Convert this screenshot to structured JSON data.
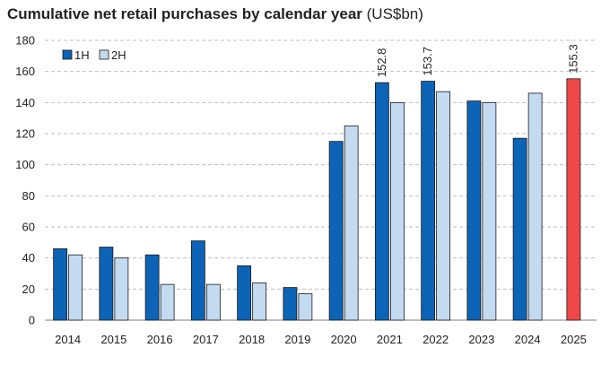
{
  "title": {
    "main": "Cumulative net retail purchases by calendar year",
    "unit": "(US$bn)"
  },
  "colors": {
    "h1": "#0d63b5",
    "h2": "#c4daf1",
    "highlight": "#f04848",
    "grid": "#bfbfbf",
    "axis": "#7f7f7f"
  },
  "chart_data": {
    "type": "bar",
    "title": "Cumulative net retail purchases by calendar year (US$bn)",
    "categories": [
      "2014",
      "2015",
      "2016",
      "2017",
      "2018",
      "2019",
      "2020",
      "2021",
      "2022",
      "2023",
      "2024",
      "2025"
    ],
    "series": [
      {
        "name": "1H",
        "values": [
          46,
          47,
          42,
          51,
          35,
          21,
          115,
          152.8,
          153.7,
          141,
          117,
          155.3
        ]
      },
      {
        "name": "2H",
        "values": [
          42,
          40,
          23,
          23,
          24,
          17,
          125,
          140,
          147,
          140,
          146,
          null
        ]
      }
    ],
    "highlight": {
      "category": "2025",
      "series": "1H",
      "color": "#f04848"
    },
    "data_labels": [
      {
        "category": "2021",
        "series": "1H",
        "text": "152.8"
      },
      {
        "category": "2022",
        "series": "1H",
        "text": "153.7"
      },
      {
        "category": "2025",
        "series": "1H",
        "text": "155.3"
      }
    ],
    "ylim": [
      0,
      180
    ],
    "yticks": [
      0,
      20,
      40,
      60,
      80,
      100,
      120,
      140,
      160,
      180
    ],
    "grid": "horizontal dashed",
    "legend": {
      "position": "top-left",
      "entries": [
        "1H",
        "2H"
      ]
    },
    "xlabel": "",
    "ylabel": ""
  }
}
